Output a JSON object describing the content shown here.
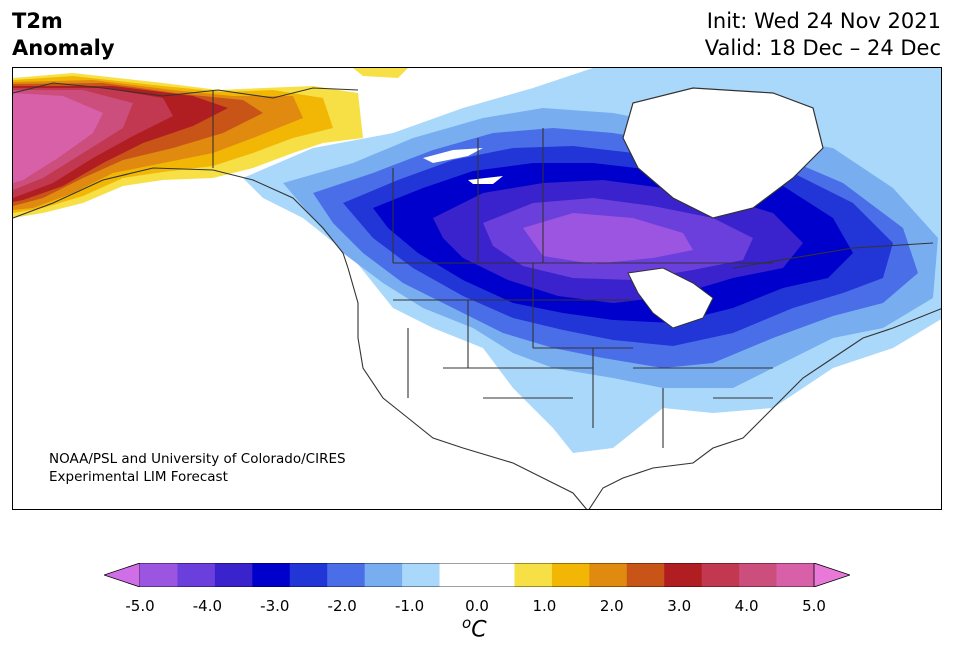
{
  "title_left": {
    "line1": "T2m",
    "line2": "Anomaly"
  },
  "title_right": {
    "line1": "Init: Wed 24 Nov 2021",
    "line2": "Valid: 18 Dec – 24 Dec"
  },
  "credit": {
    "line1": "NOAA/PSL and University of Colorado/CIRES",
    "line2": "Experimental LIM Forecast"
  },
  "colorbar": {
    "ticks": [
      "-5.0",
      "-4.0",
      "-3.0",
      "-2.0",
      "-1.0",
      "0.0",
      "1.0",
      "2.0",
      "3.0",
      "4.0",
      "5.0"
    ],
    "unit_sup": "o",
    "unit": "C",
    "colors": [
      "#cf6ee6",
      "#9b55e0",
      "#6b3fdc",
      "#3a22cc",
      "#0000cc",
      "#2236d8",
      "#4a6ee8",
      "#78aef0",
      "#aad8fb",
      "#ffffff",
      "#ffffff",
      "#f7e046",
      "#f2b705",
      "#e08a10",
      "#c85418",
      "#b01e22",
      "#c23850",
      "#cc4e7c",
      "#d860a8",
      "#e879d8"
    ]
  },
  "map": {
    "region": "North America",
    "features": [
      "land",
      "coastlines",
      "state-borders",
      "province-borders",
      "great-lakes"
    ]
  }
}
